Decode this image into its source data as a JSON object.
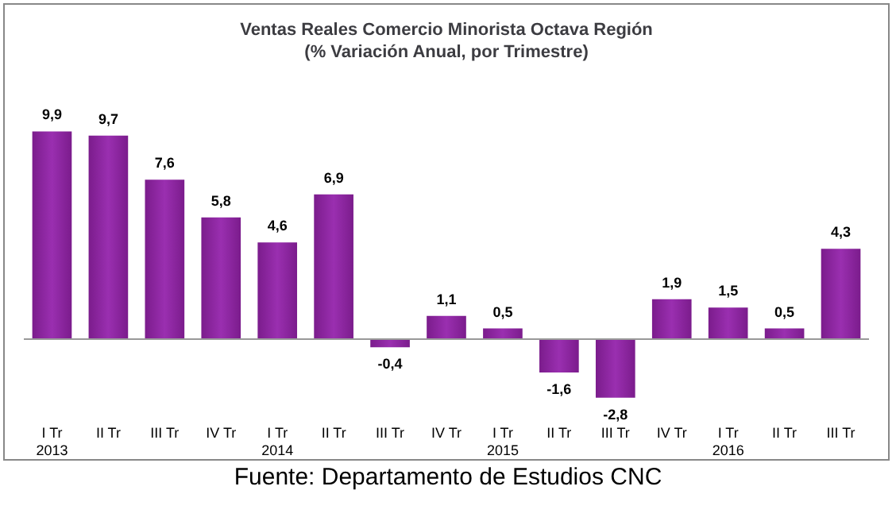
{
  "chart_data": {
    "type": "bar",
    "title": "Ventas Reales Comercio Minorista Octava Región\n(% Variación Anual, por Trimestre)",
    "categories": [
      "I Tr\n2013",
      "II Tr",
      "III Tr",
      "IV Tr",
      "I Tr\n2014",
      "II Tr",
      "III Tr",
      "IV Tr",
      "I Tr\n2015",
      "II Tr",
      "III Tr",
      "IV Tr",
      "I Tr\n2016",
      "II Tr",
      "III Tr"
    ],
    "values": [
      9.9,
      9.7,
      7.6,
      5.8,
      4.6,
      6.9,
      -0.4,
      1.1,
      0.5,
      -1.6,
      -2.8,
      1.9,
      1.5,
      0.5,
      4.3
    ],
    "color": "#7b1c8c",
    "value_labels": [
      "9,9",
      "9,7",
      "7,6",
      "5,8",
      "4,6",
      "6,9",
      "-0,4",
      "1,1",
      "0,5",
      "-1,6",
      "-2,8",
      "1,9",
      "1,5",
      "0,5",
      "4,3"
    ],
    "annotations": [
      "Fuente: Departamento de Estudios CNC"
    ]
  }
}
